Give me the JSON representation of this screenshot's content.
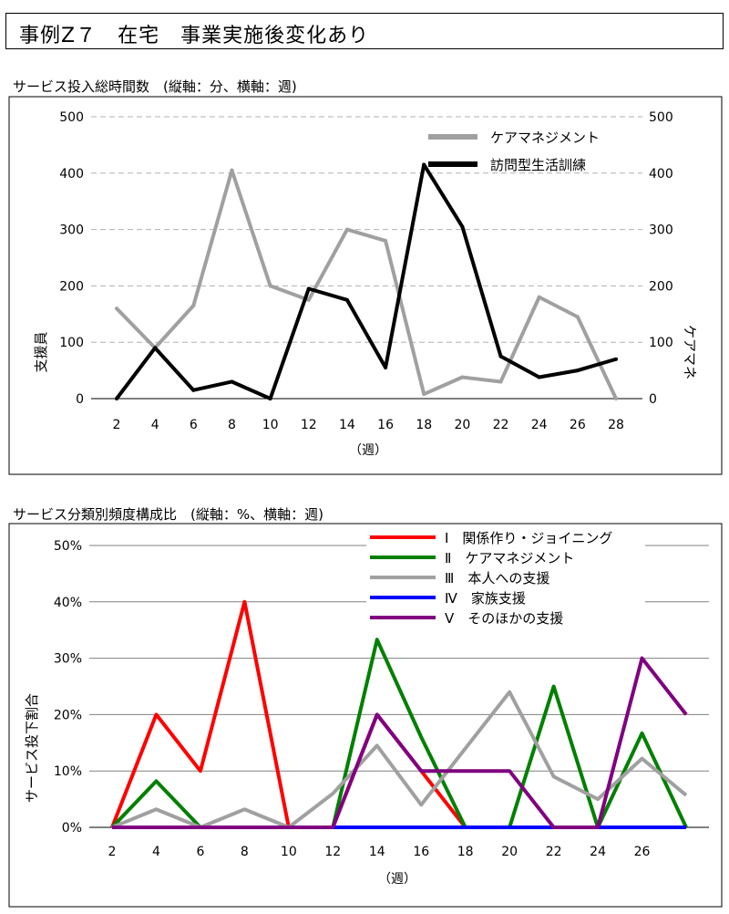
{
  "page_title": "事例Z７　在宅　事業実施後変化あり",
  "chart_data": [
    {
      "type": "line",
      "title": "サービス投入総時間数　(縦軸：分、横軸：週)",
      "xlabel": "（週）",
      "ylabel_left": "支援員",
      "ylabel_right": "ケアマネ",
      "x": [
        2,
        4,
        6,
        8,
        10,
        12,
        14,
        16,
        18,
        20,
        22,
        24,
        26,
        28
      ],
      "xticks": [
        "2",
        "4",
        "6",
        "8",
        "10",
        "12",
        "14",
        "16",
        "18",
        "20",
        "22",
        "24",
        "26",
        "28"
      ],
      "ylim": [
        0,
        500
      ],
      "yticks_left": [
        "0",
        "100",
        "200",
        "300",
        "400",
        "500"
      ],
      "yticks_right": [
        "0",
        "100",
        "200",
        "300",
        "400",
        "500"
      ],
      "grid": "horizontal-dashed",
      "legend_position": "top-right",
      "series": [
        {
          "name": "ケアマネジメント",
          "color": "#a0a0a0",
          "values": [
            160,
            90,
            165,
            405,
            200,
            175,
            300,
            280,
            8,
            38,
            30,
            180,
            145,
            0
          ]
        },
        {
          "name": "訪問型生活訓練",
          "color": "#000000",
          "values": [
            0,
            90,
            15,
            30,
            0,
            195,
            175,
            55,
            415,
            305,
            75,
            38,
            50,
            70
          ]
        }
      ]
    },
    {
      "type": "line",
      "title": "サービス分類別頻度構成比　(縦軸：%、横軸：週)",
      "xlabel": "（週）",
      "ylabel": "サービス投下割合",
      "x": [
        2,
        4,
        6,
        8,
        10,
        12,
        14,
        16,
        18,
        20,
        22,
        24,
        26,
        28
      ],
      "xticks": [
        "2",
        "4",
        "6",
        "8",
        "10",
        "12",
        "14",
        "16",
        "18",
        "20",
        "22",
        "24",
        "26"
      ],
      "ylim": [
        0,
        50
      ],
      "yticks": [
        "0%",
        "10%",
        "20%",
        "30%",
        "40%",
        "50%"
      ],
      "grid": "horizontal",
      "legend_position": "top-center",
      "series": [
        {
          "name": "Ⅰ　関係作り・ジョイニング",
          "color": "#ff0000",
          "values": [
            0,
            20,
            10,
            40,
            0,
            0,
            20,
            10,
            0,
            0,
            0,
            0,
            0,
            0
          ]
        },
        {
          "name": "Ⅱ　ケアマネジメント",
          "color": "#008000",
          "values": [
            0,
            8.2,
            0,
            0,
            0,
            0,
            33.3,
            16,
            0,
            0,
            25,
            0,
            16.7,
            0
          ]
        },
        {
          "name": "Ⅲ　本人への支援",
          "color": "#a0a0a0",
          "values": [
            0,
            3.2,
            0,
            3.2,
            0,
            6,
            14.5,
            4,
            14,
            24,
            9,
            5,
            12.2,
            5.7
          ]
        },
        {
          "name": "Ⅳ　家族支援",
          "color": "#0000ff",
          "values": [
            0,
            0,
            0,
            0,
            0,
            0,
            0,
            0,
            0,
            0,
            0,
            0,
            0,
            0
          ]
        },
        {
          "name": "Ⅴ　そのほかの支援",
          "color": "#800080",
          "values": [
            0,
            0,
            0,
            0,
            0,
            0,
            20,
            10,
            10,
            10,
            0,
            0,
            30,
            20
          ]
        }
      ]
    }
  ]
}
